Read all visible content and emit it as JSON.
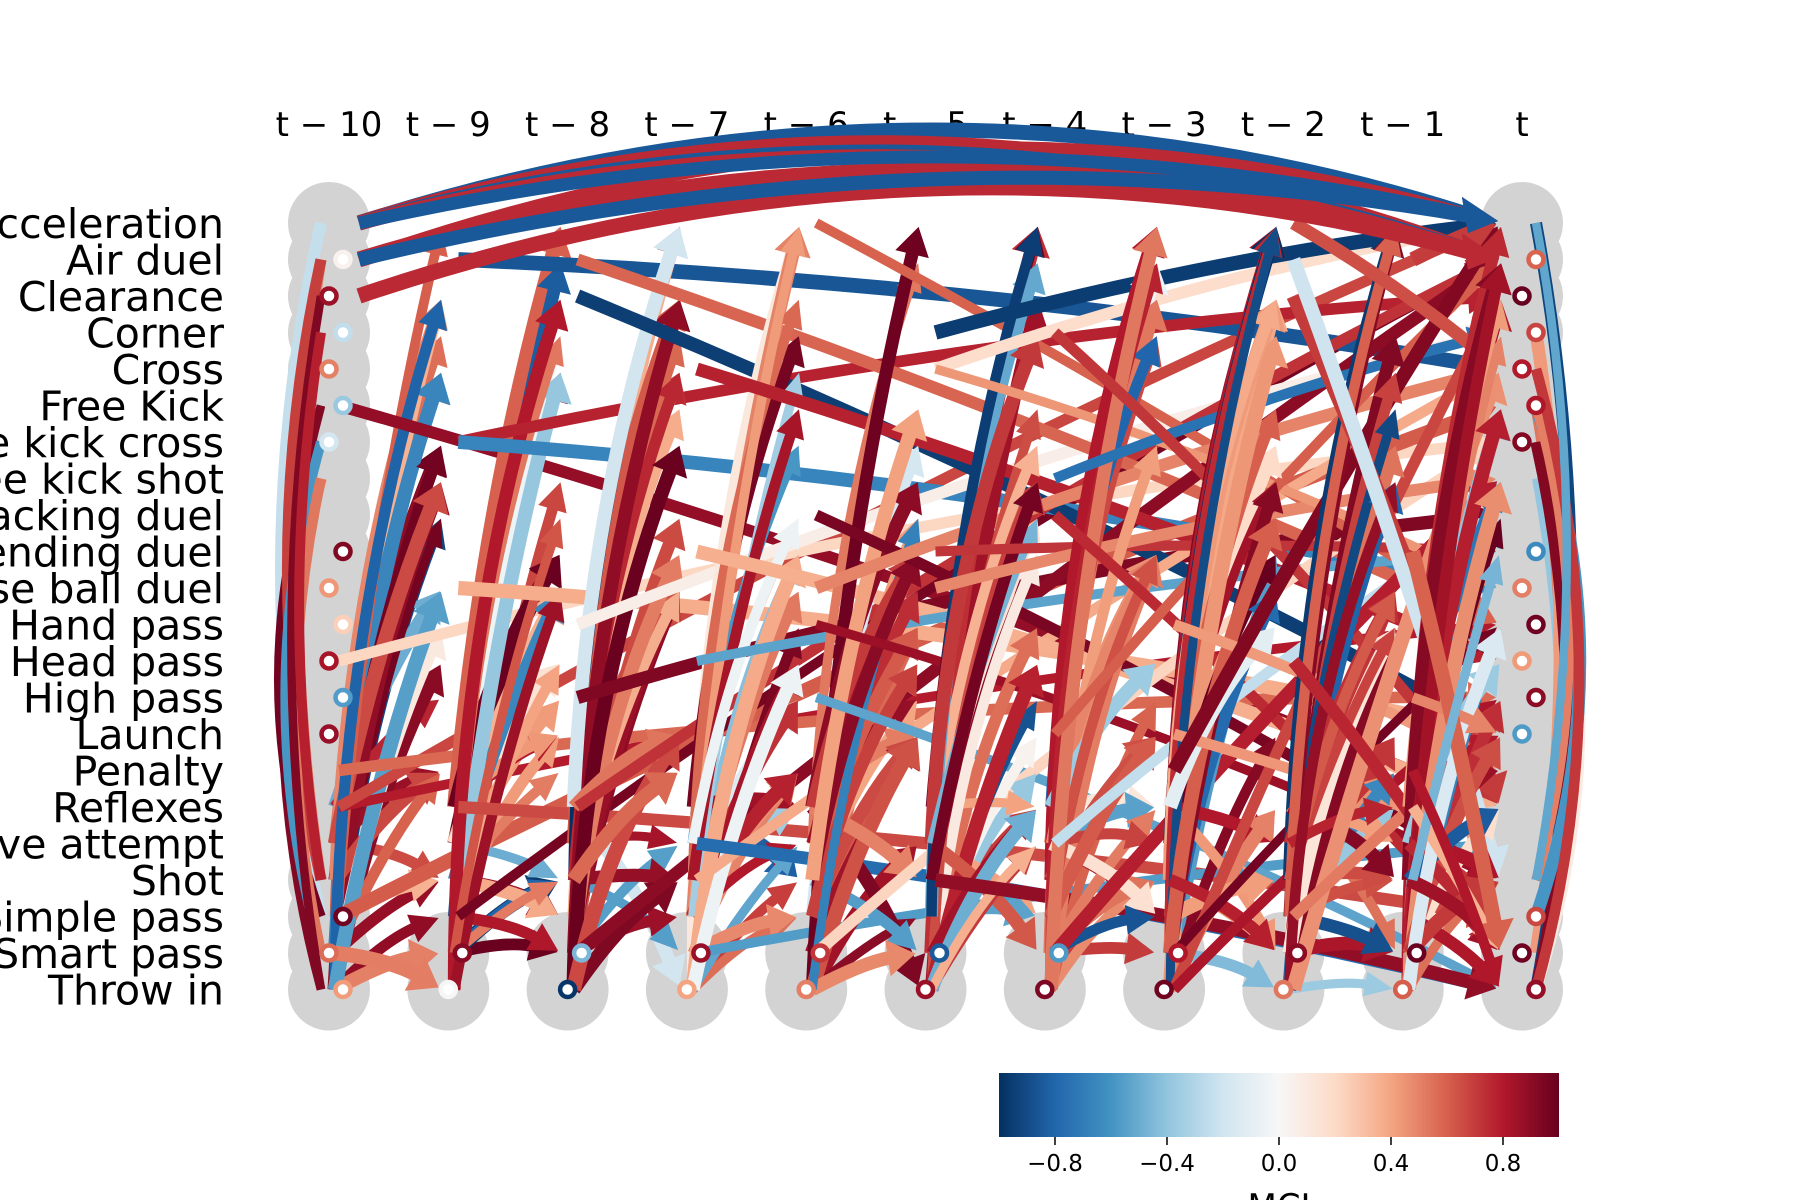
{
  "chart_data": {
    "type": "time-series causal graph",
    "time_lags": [
      "t − 10",
      "t − 9",
      "t − 8",
      "t − 7",
      "t − 6",
      "t − 5",
      "t − 4",
      "t − 3",
      "t − 2",
      "t − 1",
      "t"
    ],
    "variables": [
      "Acceleration",
      "Air duel",
      "Clearance",
      "Corner",
      "Cross",
      "Free Kick",
      "Free kick cross",
      "Free kick shot",
      "Ground attacking duel",
      "Ground defending duel",
      "Ground loose ball duel",
      "Hand pass",
      "Head pass",
      "High pass",
      "Launch",
      "Penalty",
      "Reflexes",
      "Save attempt",
      "Shot",
      "Simple pass",
      "Smart pass",
      "Throw in"
    ],
    "colorbar": {
      "label": "MCI",
      "range": [
        -1.0,
        1.0
      ],
      "ticks": [
        "−0.8",
        "−0.4",
        "0.0",
        "0.4",
        "0.8"
      ],
      "tick_values": [
        -0.8,
        -0.4,
        0.0,
        0.4,
        0.8
      ],
      "colormap": "RdBu_r"
    },
    "node_color": "#d3d3d3",
    "colormap_stops": [
      "#053061",
      "#2166ac",
      "#4393c3",
      "#92c5de",
      "#d1e5f0",
      "#f7f7f7",
      "#fddbc7",
      "#f4a582",
      "#d6604d",
      "#b2182b",
      "#67001f"
    ],
    "edges_note": "dense set of lagged links (~420) from each lag column to the next, colored by MCI"
  }
}
